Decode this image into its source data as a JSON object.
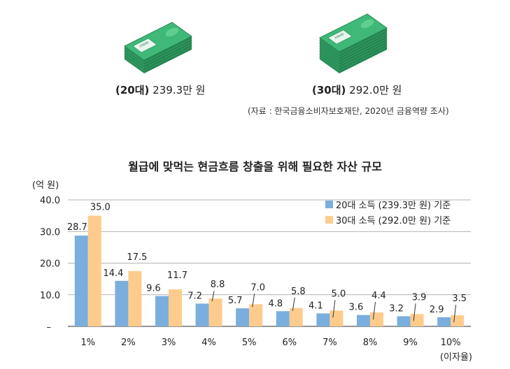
{
  "illustrations": [
    {
      "name": "money-stack-20s",
      "caption_bold": "(20대)",
      "caption_value": "239.3만 원",
      "bill_label": "10000"
    },
    {
      "name": "money-stack-30s",
      "caption_bold": "(30대)",
      "caption_value": "292.0만 원",
      "bill_label": "10000"
    }
  ],
  "source": "(자료 : 한국금융소비자보호재단, 2020년 금융역량 조사)",
  "colors": {
    "series1": "#7aaede",
    "series2": "#fdcc8d",
    "money": "#3fb878",
    "money_dark": "#2a8e59"
  },
  "chart_data": {
    "type": "bar",
    "title": "월급에 맞먹는 현금흐름 창출을 위해 필요한 자산 규모",
    "ylabel": "(억 원)",
    "xlabel": "(이자율)",
    "categories": [
      "1%",
      "2%",
      "3%",
      "4%",
      "5%",
      "6%",
      "7%",
      "8%",
      "9%",
      "10%"
    ],
    "yticks": [
      "40.0",
      "30.0",
      "20.0",
      "10.0",
      "–"
    ],
    "ylim": [
      0,
      40
    ],
    "grid": true,
    "legend_position": "top-right",
    "series": [
      {
        "name": "20대 소득 (239.3만 원) 기준",
        "values": [
          28.7,
          14.4,
          9.6,
          7.2,
          5.7,
          4.8,
          4.1,
          3.6,
          3.2,
          2.9
        ],
        "labels": [
          "28.7",
          "14.4",
          "9.6",
          "7.2",
          "5.7",
          "4.8",
          "4.1",
          "3.6",
          "3.2",
          "2.9"
        ]
      },
      {
        "name": "30대 소득 (292.0만 원) 기준",
        "values": [
          35.0,
          17.5,
          11.7,
          8.8,
          7.0,
          5.8,
          5.0,
          4.4,
          3.9,
          3.5
        ],
        "labels": [
          "35.0",
          "17.5",
          "11.7",
          "8.8",
          "7.0",
          "5.8",
          "5.0",
          "4.4",
          "3.9",
          "3.5"
        ]
      }
    ]
  }
}
